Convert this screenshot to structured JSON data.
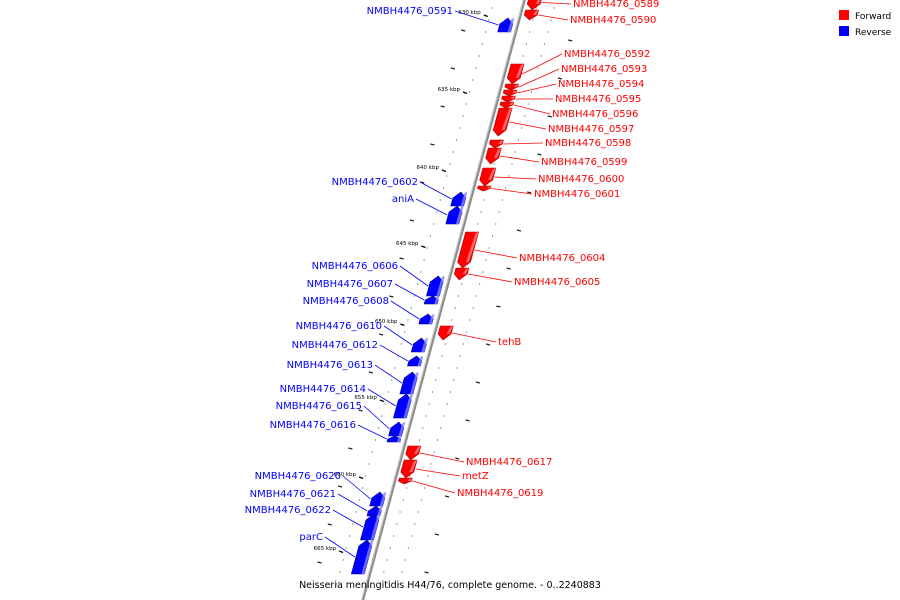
{
  "caption": "Neisseria meningitidis H44/76, complete genome. - 0..2240883",
  "legend": [
    {
      "name": "Forward",
      "color": "#ff0000"
    },
    {
      "name": "Reverse",
      "color": "#0000ff"
    }
  ],
  "colors": {
    "forward": "#ff0000",
    "reverse": "#0000ff",
    "backbone": "#8c8c8c"
  },
  "ticks": [
    "630 kbp",
    "635 kbp",
    "640 kbp",
    "645 kbp",
    "650 kbp",
    "655 kbp",
    "660 kbp",
    "665 kbp"
  ],
  "genes": [
    {
      "name": "NMBH4476_0589",
      "strand": "forward"
    },
    {
      "name": "NMBH4476_0590",
      "strand": "forward"
    },
    {
      "name": "NMBH4476_0591",
      "strand": "reverse"
    },
    {
      "name": "NMBH4476_0592",
      "strand": "forward"
    },
    {
      "name": "NMBH4476_0593",
      "strand": "forward"
    },
    {
      "name": "NMBH4476_0594",
      "strand": "forward"
    },
    {
      "name": "NMBH4476_0595",
      "strand": "forward"
    },
    {
      "name": "NMBH4476_0596",
      "strand": "forward"
    },
    {
      "name": "NMBH4476_0597",
      "strand": "forward"
    },
    {
      "name": "NMBH4476_0598",
      "strand": "forward"
    },
    {
      "name": "NMBH4476_0599",
      "strand": "forward"
    },
    {
      "name": "NMBH4476_0600",
      "strand": "forward"
    },
    {
      "name": "NMBH4476_0601",
      "strand": "forward"
    },
    {
      "name": "NMBH4476_0602",
      "strand": "reverse"
    },
    {
      "name": "aniA",
      "strand": "reverse"
    },
    {
      "name": "NMBH4476_0604",
      "strand": "forward"
    },
    {
      "name": "NMBH4476_0605",
      "strand": "forward"
    },
    {
      "name": "NMBH4476_0606",
      "strand": "reverse"
    },
    {
      "name": "NMBH4476_0607",
      "strand": "reverse"
    },
    {
      "name": "NMBH4476_0608",
      "strand": "reverse"
    },
    {
      "name": "tehB",
      "strand": "forward"
    },
    {
      "name": "NMBH4476_0610",
      "strand": "reverse"
    },
    {
      "name": "NMBH4476_0612",
      "strand": "reverse"
    },
    {
      "name": "NMBH4476_0613",
      "strand": "reverse"
    },
    {
      "name": "NMBH4476_0614",
      "strand": "reverse"
    },
    {
      "name": "NMBH4476_0615",
      "strand": "reverse"
    },
    {
      "name": "NMBH4476_0616",
      "strand": "reverse"
    },
    {
      "name": "NMBH4476_0617",
      "strand": "forward"
    },
    {
      "name": "metZ",
      "strand": "forward"
    },
    {
      "name": "NMBH4476_0619",
      "strand": "forward"
    },
    {
      "name": "NMBH4476_0620",
      "strand": "reverse"
    },
    {
      "name": "NMBH4476_0621",
      "strand": "reverse"
    },
    {
      "name": "NMBH4476_0622",
      "strand": "reverse"
    },
    {
      "name": "parC",
      "strand": "reverse"
    }
  ]
}
